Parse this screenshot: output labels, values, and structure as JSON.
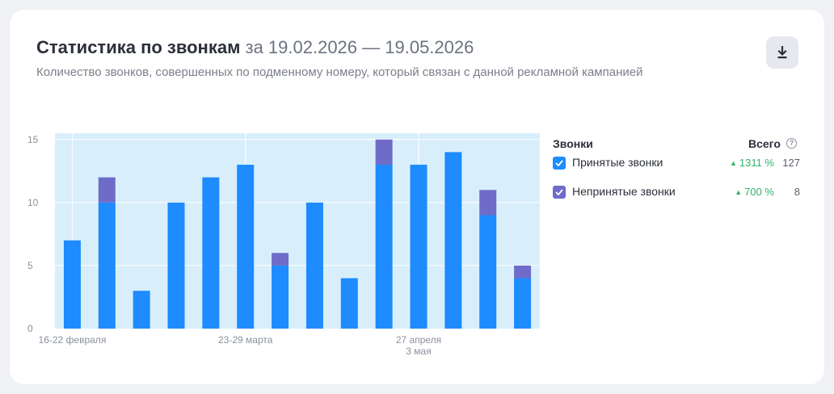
{
  "header": {
    "title": "Статистика по звонкам",
    "period": "за 19.02.2026 — 19.05.2026",
    "subtitle": "Количество звонков, совершенных по подменному номеру, который связан с данной рекламной кампанией",
    "download_icon": "download-icon"
  },
  "legend": {
    "col_name": "Звонки",
    "col_total": "Всего",
    "help_glyph": "?",
    "items": [
      {
        "label": "Принятые звонки",
        "change": "1311 %",
        "total": "127",
        "checked": true,
        "color": "#1e8bff"
      },
      {
        "label": "Непринятые звонки",
        "change": "700 %",
        "total": "8",
        "checked": true,
        "color": "#6f6cc9"
      }
    ]
  },
  "chart_data": {
    "type": "bar",
    "stacked": true,
    "ylim": [
      0,
      15.5
    ],
    "yticks": [
      0,
      5,
      10,
      15
    ],
    "grid": true,
    "x_labels": [
      {
        "index": 0,
        "lines": [
          "16-22 февраля"
        ]
      },
      {
        "index": 5,
        "lines": [
          "23-29 марта"
        ]
      },
      {
        "index": 10,
        "lines": [
          "27 апреля",
          "3 мая"
        ]
      }
    ],
    "series": [
      {
        "name": "Принятые звонки",
        "color": "#1e8bff",
        "values": [
          7,
          10,
          3,
          10,
          12,
          13,
          5,
          10,
          4,
          13,
          13,
          14,
          9,
          4
        ]
      },
      {
        "name": "Непринятые звонки",
        "color": "#6f6cc9",
        "values": [
          0,
          2,
          0,
          0,
          0,
          0,
          1,
          0,
          0,
          2,
          0,
          0,
          2,
          1
        ]
      }
    ],
    "colors": {
      "background": "#d8effb",
      "grid": "#ffffff",
      "axis_text": "#8b909c"
    }
  }
}
